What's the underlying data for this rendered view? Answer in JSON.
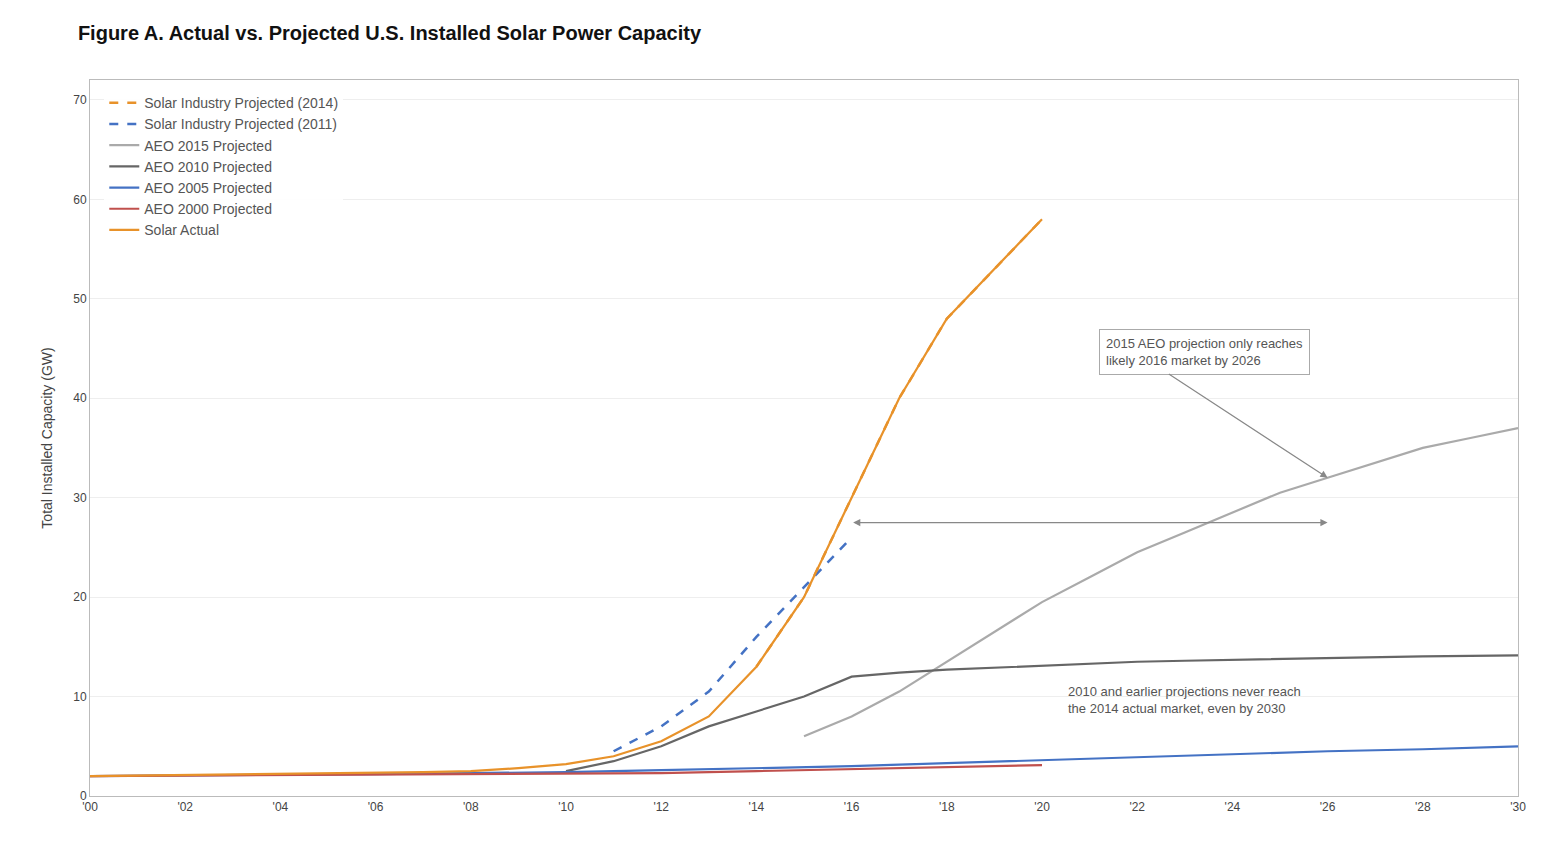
{
  "chart_data": {
    "type": "line",
    "title": "Figure A. Actual vs. Projected U.S. Installed Solar Power Capacity",
    "ylabel": "Total Installed Capacity (GW)",
    "xlim": [
      2000,
      2030
    ],
    "ylim": [
      0,
      72
    ],
    "xticks": [
      {
        "value": 2000,
        "label": "'00"
      },
      {
        "value": 2002,
        "label": "'02"
      },
      {
        "value": 2004,
        "label": "'04"
      },
      {
        "value": 2006,
        "label": "'06"
      },
      {
        "value": 2008,
        "label": "'08"
      },
      {
        "value": 2010,
        "label": "'10"
      },
      {
        "value": 2012,
        "label": "'12"
      },
      {
        "value": 2014,
        "label": "'14"
      },
      {
        "value": 2016,
        "label": "'16"
      },
      {
        "value": 2018,
        "label": "'18"
      },
      {
        "value": 2020,
        "label": "'20"
      },
      {
        "value": 2022,
        "label": "'22"
      },
      {
        "value": 2024,
        "label": "'24"
      },
      {
        "value": 2026,
        "label": "'26"
      },
      {
        "value": 2028,
        "label": "'28"
      },
      {
        "value": 2030,
        "label": "'30"
      }
    ],
    "yticks": [
      0,
      10,
      20,
      30,
      40,
      50,
      60,
      70
    ],
    "grid": true,
    "legend": "upper left",
    "series": [
      {
        "name": "Solar Industry Projected (2014)",
        "color": "#E8922A",
        "line_style": "dashed",
        "x": [
          2014,
          2015,
          2016,
          2017,
          2018,
          2019,
          2020
        ],
        "values": [
          13.0,
          20.0,
          30.0,
          40.0,
          48.0,
          53.0,
          58.0
        ]
      },
      {
        "name": "Solar Industry Projected (2011)",
        "color": "#4472C4",
        "line_style": "dashed",
        "x": [
          2011,
          2012,
          2013,
          2014,
          2015,
          2016
        ],
        "values": [
          4.5,
          7.0,
          10.5,
          16.0,
          21.0,
          26.0
        ]
      },
      {
        "name": "AEO 2015 Projected",
        "color": "#AAAAAA",
        "line_style": "solid",
        "x": [
          2015,
          2016,
          2017,
          2018,
          2019,
          2020,
          2021,
          2022,
          2023,
          2024,
          2025,
          2026,
          2027,
          2028,
          2029,
          2030
        ],
        "values": [
          6.0,
          8.0,
          10.5,
          13.5,
          16.5,
          19.5,
          22.0,
          24.5,
          26.5,
          28.5,
          30.5,
          32.0,
          33.5,
          35.0,
          36.0,
          37.0
        ]
      },
      {
        "name": "AEO 2010 Projected",
        "color": "#666666",
        "line_style": "solid",
        "x": [
          2010,
          2011,
          2012,
          2013,
          2014,
          2015,
          2016,
          2017,
          2018,
          2019,
          2020,
          2021,
          2022,
          2023,
          2024,
          2025,
          2026,
          2027,
          2028,
          2029,
          2030
        ],
        "values": [
          2.5,
          3.5,
          5.0,
          7.0,
          8.5,
          10.0,
          12.0,
          12.4,
          12.7,
          12.9,
          13.1,
          13.3,
          13.5,
          13.6,
          13.7,
          13.8,
          13.9,
          14.0,
          14.05,
          14.1,
          14.15
        ]
      },
      {
        "name": "AEO 2005 Projected",
        "color": "#4472C4",
        "line_style": "solid",
        "x": [
          2000,
          2002,
          2004,
          2006,
          2008,
          2010,
          2012,
          2014,
          2016,
          2018,
          2020,
          2022,
          2024,
          2026,
          2028,
          2030
        ],
        "values": [
          2.0,
          2.1,
          2.15,
          2.2,
          2.3,
          2.4,
          2.6,
          2.8,
          3.0,
          3.3,
          3.6,
          3.9,
          4.2,
          4.5,
          4.7,
          5.0
        ]
      },
      {
        "name": "AEO 2000 Projected",
        "color": "#C0504D",
        "line_style": "solid",
        "x": [
          2000,
          2002,
          2004,
          2006,
          2008,
          2010,
          2012,
          2014,
          2016,
          2018,
          2020
        ],
        "values": [
          2.0,
          2.05,
          2.1,
          2.15,
          2.2,
          2.25,
          2.3,
          2.5,
          2.7,
          2.9,
          3.1
        ]
      },
      {
        "name": "Solar Actual",
        "color": "#E8922A",
        "line_style": "solid",
        "x": [
          2000,
          2001,
          2002,
          2003,
          2004,
          2005,
          2006,
          2007,
          2008,
          2009,
          2010,
          2011,
          2012,
          2013,
          2014,
          2015,
          2016,
          2017,
          2018,
          2019,
          2020
        ],
        "values": [
          2.0,
          2.05,
          2.1,
          2.15,
          2.2,
          2.25,
          2.3,
          2.4,
          2.5,
          2.8,
          3.2,
          4.0,
          5.5,
          8.0,
          13.0,
          20.0,
          30.0,
          40.0,
          48.0,
          53.0,
          58.0
        ]
      }
    ],
    "annotations": [
      {
        "text": "2015 AEO projection only reaches\nlikely 2016 market by 2026",
        "x": 2021.2,
        "y": 47.0,
        "arrow_x": 2026.0,
        "arrow_y": 32.0
      },
      {
        "text": "2010 and earlier projections never reach\nthe 2014 actual market, even by 2030",
        "x": 2020.5,
        "y": 11.5
      }
    ],
    "arrows": [
      {
        "x1": 2016.0,
        "x2": 2026.0,
        "y": 27.5
      }
    ]
  }
}
